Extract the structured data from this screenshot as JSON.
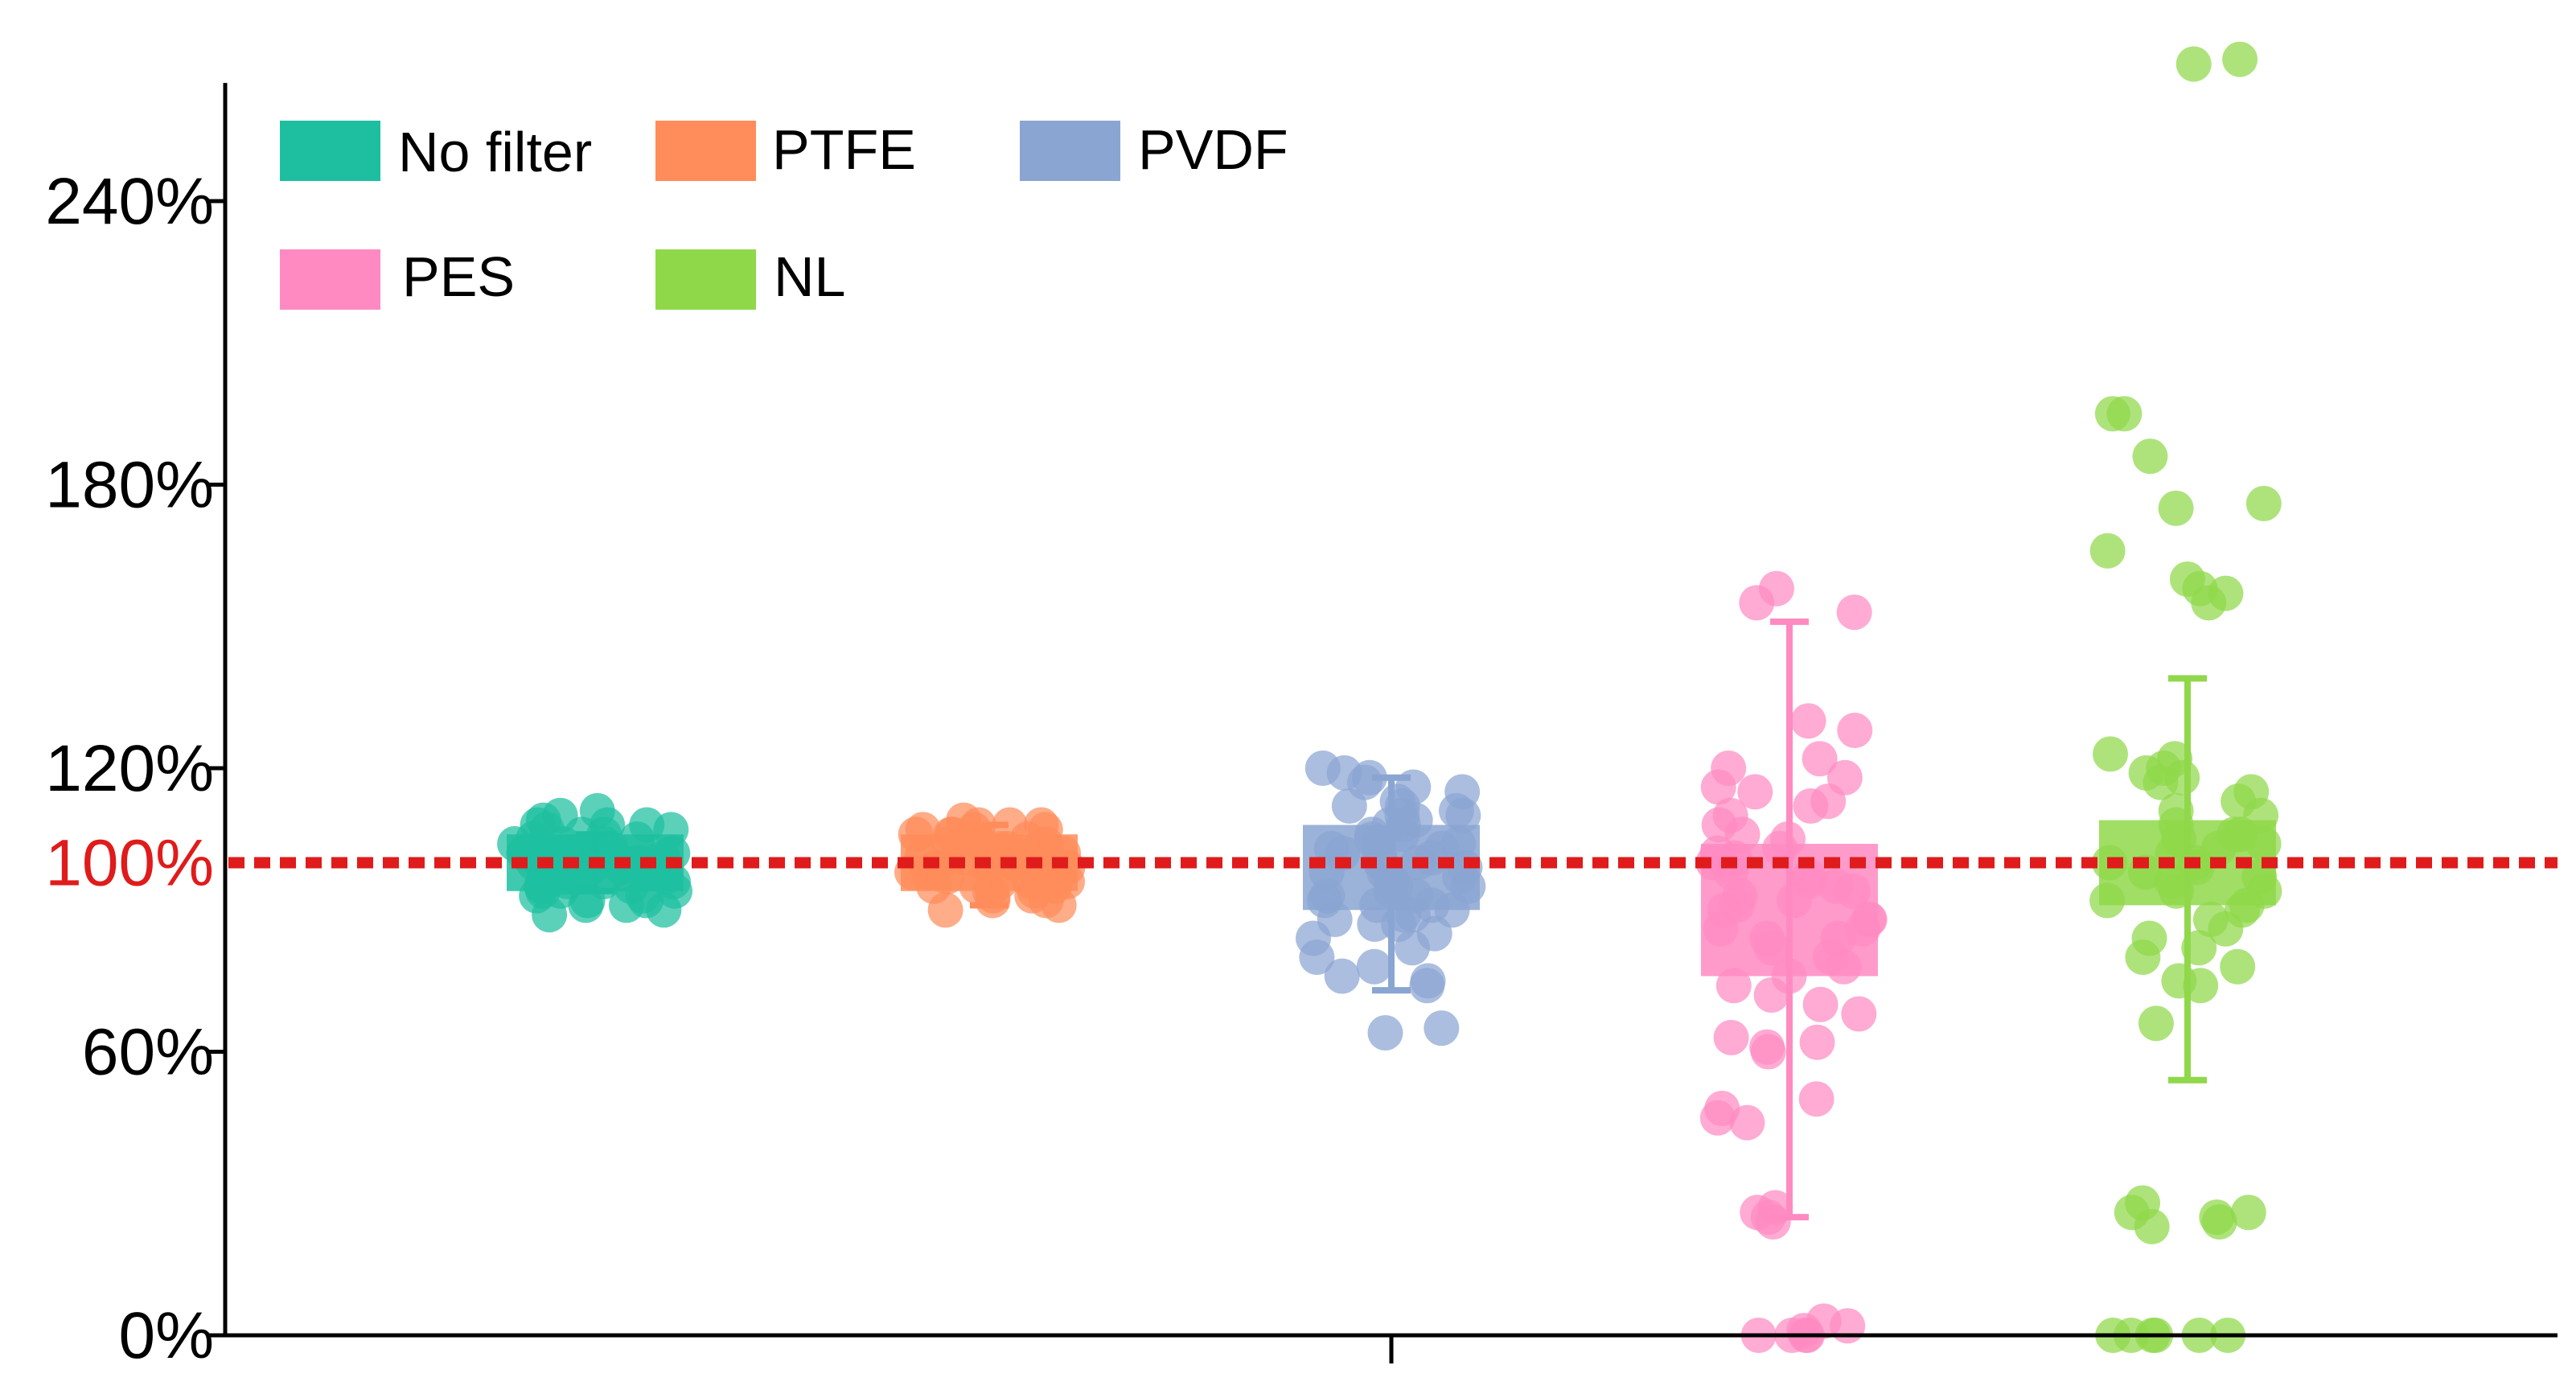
{
  "chart_data": {
    "type": "scatter",
    "title": "",
    "xlabel": "",
    "ylabel": "",
    "ylim": [
      0,
      265
    ],
    "y_ticks": [
      {
        "value": 0,
        "label": "0%"
      },
      {
        "value": 60,
        "label": "60%"
      },
      {
        "value": 120,
        "label": "120%"
      },
      {
        "value": 180,
        "label": "180%"
      },
      {
        "value": 240,
        "label": "240%"
      }
    ],
    "reference_line": {
      "value": 100,
      "label": "100%",
      "color": "#e01b1b",
      "style": "dotted"
    },
    "legend": {
      "position": "top-left"
    },
    "series": [
      {
        "name": "No filter",
        "color": "#1dbfa0",
        "mean": 100,
        "error_low": 94,
        "error_high": 106,
        "box_low": 94,
        "box_high": 106,
        "points": [
          99,
          102,
          104,
          97,
          100,
          101,
          95,
          96,
          103,
          107,
          108,
          109,
          94,
          92,
          91,
          90,
          98,
          100,
          102,
          105,
          106,
          99,
          97,
          93,
          101,
          103,
          104,
          100,
          98,
          96,
          95,
          94,
          106,
          107,
          108,
          102,
          101,
          99,
          100,
          103,
          97,
          92,
          89,
          91,
          93,
          110,
          111,
          108,
          105,
          104,
          100,
          98,
          96,
          102,
          100,
          99,
          101,
          97,
          94,
          95
        ]
      },
      {
        "name": "PTFE",
        "color": "#ff8c5a",
        "mean": 100,
        "error_low": 91,
        "error_high": 108,
        "box_low": 94,
        "box_high": 106,
        "points": [
          100,
          102,
          104,
          106,
          108,
          96,
          94,
          93,
          92,
          98,
          101,
          103,
          105,
          107,
          109,
          95,
          97,
          99,
          100,
          102,
          104,
          106,
          108,
          91,
          90,
          93,
          95,
          97,
          99,
          101,
          103,
          105,
          107,
          96,
          98,
          100,
          102,
          104,
          106,
          94,
          92,
          100,
          101,
          99,
          103,
          105,
          107,
          108,
          96,
          95
        ]
      },
      {
        "name": "PVDF",
        "color": "#8aa5d2",
        "mean": 100,
        "error_low": 73,
        "error_high": 118,
        "box_low": 90,
        "box_high": 108,
        "points": [
          120,
          118,
          117,
          115,
          113,
          112,
          110,
          108,
          106,
          105,
          104,
          103,
          102,
          101,
          100,
          99,
          98,
          97,
          96,
          95,
          94,
          93,
          92,
          91,
          90,
          89,
          88,
          87,
          85,
          84,
          82,
          80,
          78,
          76,
          75,
          74,
          65,
          64,
          100,
          102,
          104,
          98,
          96,
          108,
          110,
          112,
          95,
          93,
          91,
          89,
          87,
          100,
          103,
          106,
          109,
          111,
          116,
          119
        ]
      },
      {
        "name": "PES",
        "color": "#ff8ac2",
        "mean": 90,
        "error_low": 25,
        "error_high": 151,
        "box_low": 76,
        "box_high": 104,
        "points": [
          158,
          155,
          153,
          130,
          128,
          122,
          120,
          118,
          116,
          115,
          113,
          112,
          110,
          108,
          106,
          105,
          103,
          101,
          100,
          98,
          97,
          95,
          93,
          91,
          90,
          88,
          86,
          84,
          82,
          80,
          78,
          76,
          74,
          72,
          70,
          68,
          63,
          62,
          61,
          60,
          50,
          48,
          46,
          45,
          27,
          26,
          25,
          24,
          0,
          0,
          0,
          0,
          1,
          2,
          3,
          100,
          96,
          92,
          88,
          84,
          102,
          94,
          86
        ]
      },
      {
        "name": "NL",
        "color": "#8fd84a",
        "mean": 100,
        "error_low": 54,
        "error_high": 139,
        "box_low": 91,
        "box_high": 109,
        "points": [
          270,
          269,
          195,
          195,
          186,
          176,
          175,
          166,
          160,
          158,
          157,
          155,
          123,
          122,
          120,
          119,
          118,
          117,
          115,
          113,
          111,
          110,
          108,
          106,
          105,
          104,
          102,
          100,
          99,
          98,
          96,
          94,
          92,
          90,
          88,
          86,
          84,
          82,
          80,
          78,
          75,
          74,
          66,
          26,
          26,
          25,
          24,
          23,
          28,
          0,
          0,
          0,
          0,
          0,
          0,
          100,
          103,
          106,
          97,
          94,
          91
        ]
      }
    ]
  }
}
